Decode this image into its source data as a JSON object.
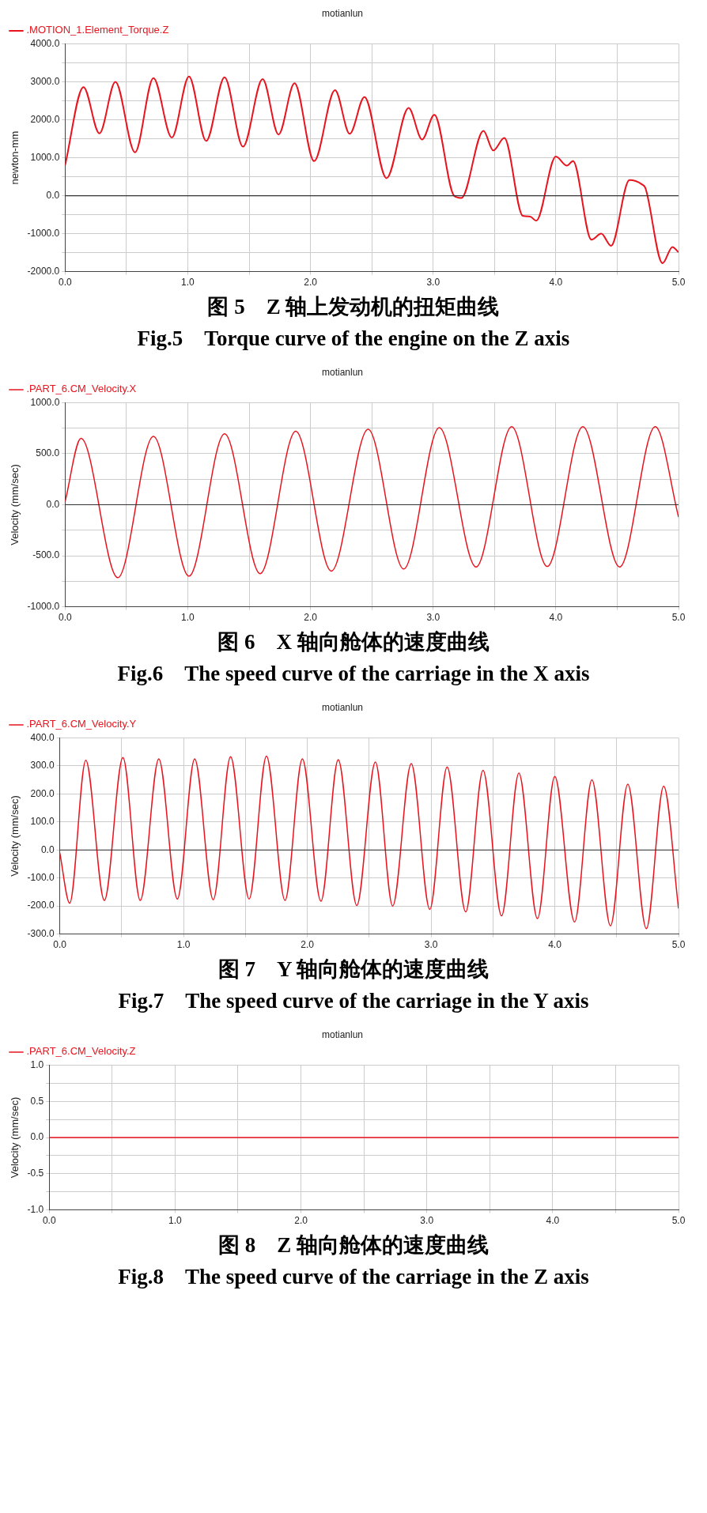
{
  "chart_data": [
    {
      "type": "line",
      "title": "motianlun",
      "ylabel": "newton-mm",
      "legend": "top left",
      "grid": true,
      "xlim": [
        0,
        5
      ],
      "xticks": [
        {
          "value": 0,
          "label": "0.0"
        },
        {
          "value": 0.5,
          "label": null
        },
        {
          "value": 1,
          "label": "1.0"
        },
        {
          "value": 1.5,
          "label": null
        },
        {
          "value": 2,
          "label": "2.0"
        },
        {
          "value": 2.5,
          "label": null
        },
        {
          "value": 3,
          "label": "3.0"
        },
        {
          "value": 3.5,
          "label": null
        },
        {
          "value": 4,
          "label": "4.0"
        },
        {
          "value": 4.5,
          "label": null
        },
        {
          "value": 5,
          "label": "5.0"
        }
      ],
      "ylim": [
        -2000,
        4000
      ],
      "yticks": [
        {
          "value": -2000,
          "label": "-2000.0"
        },
        {
          "value": -1500,
          "label": null
        },
        {
          "value": -1000,
          "label": "-1000.0"
        },
        {
          "value": -500,
          "label": null
        },
        {
          "value": 0,
          "label": "0.0"
        },
        {
          "value": 500,
          "label": null
        },
        {
          "value": 1000,
          "label": "1000.0"
        },
        {
          "value": 1500,
          "label": null
        },
        {
          "value": 2000,
          "label": "2000.0"
        },
        {
          "value": 2500,
          "label": null
        },
        {
          "value": 3000,
          "label": "3000.0"
        },
        {
          "value": 3500,
          "label": null
        },
        {
          "value": 4000,
          "label": "4000.0"
        }
      ],
      "ref_lines": [
        {
          "axis": "y",
          "value": 0,
          "color": "#333333"
        }
      ],
      "x": [
        0,
        0.15,
        0.28,
        0.41,
        0.57,
        0.72,
        0.87,
        1.01,
        1.15,
        1.3,
        1.45,
        1.61,
        1.74,
        1.87,
        2.03,
        2.2,
        2.32,
        2.44,
        2.62,
        2.8,
        2.91,
        3.01,
        3.17,
        3.23,
        3.41,
        3.49,
        3.58,
        3.73,
        3.79,
        3.84,
        4,
        4.09,
        4.14,
        4.29,
        4.37,
        4.45,
        4.6,
        4.7,
        4.73,
        4.87,
        4.95,
        5
      ],
      "series": [
        {
          "name": ".MOTION_1.Element_Torque.Z",
          "color": "#e8141e",
          "values": [
            800,
            2860,
            1640,
            3000,
            1140,
            3100,
            1530,
            3140,
            1440,
            3120,
            1290,
            3070,
            1610,
            2960,
            910,
            2780,
            1630,
            2600,
            460,
            2310,
            1480,
            2130,
            0,
            -60,
            1710,
            1190,
            1520,
            -530,
            -550,
            -660,
            1030,
            790,
            910,
            -1160,
            -1000,
            -1320,
            410,
            300,
            200,
            -1780,
            -1350,
            -1490
          ]
        }
      ],
      "annotations": [
        "图 5　Z 轴上发动机的扭矩曲线",
        "Fig.5　Torque curve of the engine on the Z axis"
      ]
    },
    {
      "type": "line",
      "title": "motianlun",
      "ylabel": "Velocity (mm/sec)",
      "legend": "top left",
      "grid": true,
      "xlim": [
        0,
        5
      ],
      "xticks": [
        {
          "value": 0,
          "label": "0.0"
        },
        {
          "value": 0.5,
          "label": null
        },
        {
          "value": 1,
          "label": "1.0"
        },
        {
          "value": 1.5,
          "label": null
        },
        {
          "value": 2,
          "label": "2.0"
        },
        {
          "value": 2.5,
          "label": null
        },
        {
          "value": 3,
          "label": "3.0"
        },
        {
          "value": 3.5,
          "label": null
        },
        {
          "value": 4,
          "label": "4.0"
        },
        {
          "value": 4.5,
          "label": null
        },
        {
          "value": 5,
          "label": "5.0"
        }
      ],
      "ylim": [
        -1000,
        1000
      ],
      "yticks": [
        {
          "value": -1000,
          "label": "-1000.0"
        },
        {
          "value": -750,
          "label": null
        },
        {
          "value": -500,
          "label": "-500.0"
        },
        {
          "value": -250,
          "label": null
        },
        {
          "value": 0,
          "label": "0.0"
        },
        {
          "value": 250,
          "label": null
        },
        {
          "value": 500,
          "label": "500.0"
        },
        {
          "value": 750,
          "label": null
        },
        {
          "value": 1000,
          "label": "1000.0"
        }
      ],
      "ref_lines": [
        {
          "axis": "y",
          "value": 0,
          "color": "#333333"
        }
      ],
      "x": [
        0,
        0.13,
        0.43,
        0.72,
        1.01,
        1.3,
        1.59,
        1.88,
        2.17,
        2.47,
        2.76,
        3.05,
        3.35,
        3.64,
        3.93,
        4.22,
        4.52,
        4.81,
        5
      ],
      "series": [
        {
          "name": ".PART_6.CM_Velocity.X",
          "color": "#e8141e",
          "values": [
            30,
            650,
            -715,
            670,
            -700,
            695,
            -675,
            720,
            -650,
            740,
            -630,
            755,
            -610,
            765,
            -605,
            765,
            -610,
            765,
            -120
          ]
        }
      ],
      "annotations": [
        "图 6　X 轴向舱体的速度曲线",
        "Fig.6　The speed curve of the carriage in the X axis"
      ]
    },
    {
      "type": "line",
      "title": "motianlun",
      "ylabel": "Velocity (mm/sec)",
      "legend": "top left",
      "grid": true,
      "xlim": [
        0,
        5
      ],
      "xticks": [
        {
          "value": 0,
          "label": "0.0"
        },
        {
          "value": 0.5,
          "label": null
        },
        {
          "value": 1,
          "label": "1.0"
        },
        {
          "value": 1.5,
          "label": null
        },
        {
          "value": 2,
          "label": "2.0"
        },
        {
          "value": 2.5,
          "label": null
        },
        {
          "value": 3,
          "label": "3.0"
        },
        {
          "value": 3.5,
          "label": null
        },
        {
          "value": 4,
          "label": "4.0"
        },
        {
          "value": 4.5,
          "label": null
        },
        {
          "value": 5,
          "label": "5.0"
        }
      ],
      "ylim": [
        -300,
        400
      ],
      "yticks": [
        {
          "value": -300,
          "label": "-300.0"
        },
        {
          "value": -200,
          "label": "-200.0"
        },
        {
          "value": -100,
          "label": "-100.0"
        },
        {
          "value": 0,
          "label": "0.0"
        },
        {
          "value": 100,
          "label": "100.0"
        },
        {
          "value": 200,
          "label": "200.0"
        },
        {
          "value": 300,
          "label": "300.0"
        },
        {
          "value": 400,
          "label": "400.0"
        }
      ],
      "ref_lines": [
        {
          "axis": "y",
          "value": 0,
          "color": "#333333"
        }
      ],
      "x": [
        0,
        0.08,
        0.21,
        0.36,
        0.51,
        0.65,
        0.8,
        0.95,
        1.09,
        1.24,
        1.38,
        1.53,
        1.67,
        1.82,
        1.96,
        2.11,
        2.25,
        2.4,
        2.55,
        2.69,
        2.84,
        2.99,
        3.13,
        3.28,
        3.42,
        3.57,
        3.71,
        3.86,
        4,
        4.16,
        4.3,
        4.45,
        4.59,
        4.74,
        4.88,
        5
      ],
      "series": [
        {
          "name": ".PART_6.CM_Velocity.Y",
          "color": "#e8141e",
          "values": [
            -10,
            -190,
            320,
            -180,
            330,
            -180,
            325,
            -175,
            325,
            -178,
            333,
            -175,
            335,
            -180,
            325,
            -183,
            322,
            -198,
            314,
            -200,
            308,
            -212,
            296,
            -221,
            284,
            -235,
            274,
            -245,
            262,
            -257,
            250,
            -271,
            235,
            -281,
            228,
            -209
          ]
        }
      ],
      "annotations": [
        "图 7　Y 轴向舱体的速度曲线",
        "Fig.7　The speed curve of the carriage in the Y axis"
      ]
    },
    {
      "type": "line",
      "title": "motianlun",
      "ylabel": "Velocity (mm/sec)",
      "legend": "top left",
      "grid": true,
      "xlim": [
        0,
        5
      ],
      "xticks": [
        {
          "value": 0,
          "label": "0.0"
        },
        {
          "value": 0.5,
          "label": null
        },
        {
          "value": 1,
          "label": "1.0"
        },
        {
          "value": 1.5,
          "label": null
        },
        {
          "value": 2,
          "label": "2.0"
        },
        {
          "value": 2.5,
          "label": null
        },
        {
          "value": 3,
          "label": "3.0"
        },
        {
          "value": 3.5,
          "label": null
        },
        {
          "value": 4,
          "label": "4.0"
        },
        {
          "value": 4.5,
          "label": null
        },
        {
          "value": 5,
          "label": "5.0"
        }
      ],
      "ylim": [
        -1,
        1
      ],
      "yticks": [
        {
          "value": -1,
          "label": "-1.0"
        },
        {
          "value": -0.75,
          "label": null
        },
        {
          "value": -0.5,
          "label": "-0.5"
        },
        {
          "value": -0.25,
          "label": null
        },
        {
          "value": 0,
          "label": "0.0"
        },
        {
          "value": 0.25,
          "label": null
        },
        {
          "value": 0.5,
          "label": "0.5"
        },
        {
          "value": 0.75,
          "label": null
        },
        {
          "value": 1,
          "label": "1.0"
        }
      ],
      "x": [
        0,
        5
      ],
      "series": [
        {
          "name": ".PART_6.CM_Velocity.Z",
          "color": "#e8141e",
          "values": [
            0,
            0
          ]
        }
      ],
      "annotations": [
        "图 8　Z 轴向舱体的速度曲线",
        "Fig.8　The speed curve of the carriage in the Z axis"
      ]
    }
  ]
}
